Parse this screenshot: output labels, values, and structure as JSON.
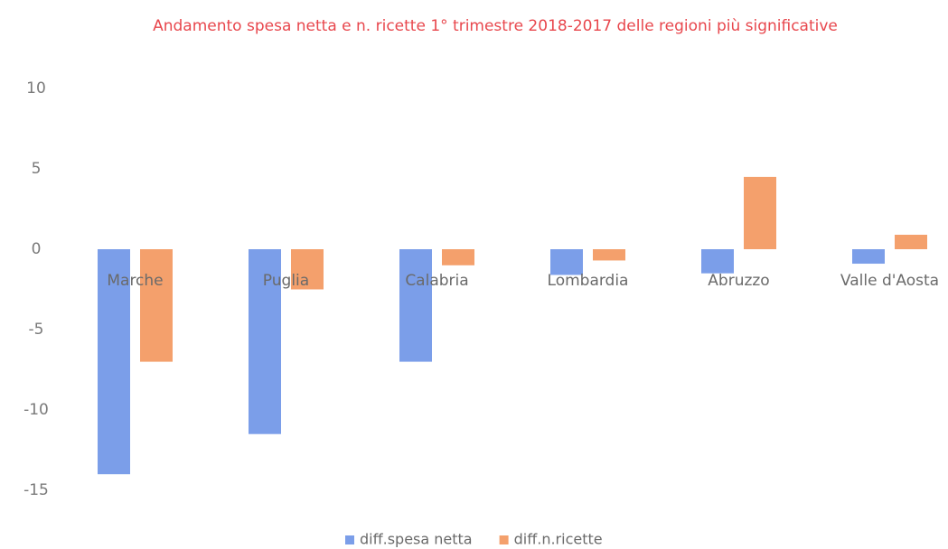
{
  "chart_data": {
    "type": "bar",
    "title": "Andamento spesa netta e n. ricette 1° trimestre 2018-2017 delle regioni più significative",
    "categories": [
      "Marche",
      "Puglia",
      "Calabria",
      "Lombardia",
      "Abruzzo",
      "Valle d'Aosta"
    ],
    "series": [
      {
        "name": "diff.spesa netta",
        "color": "#7b9ee9",
        "values": [
          -14,
          -11.5,
          -7,
          -1.6,
          -1.5,
          -0.9
        ]
      },
      {
        "name": "diff.n.ricette",
        "color": "#f4a06c",
        "values": [
          -7,
          -2.5,
          -1,
          -0.7,
          4.5,
          0.9
        ]
      }
    ],
    "ylim": [
      -15,
      10
    ],
    "yticks": [
      -15,
      -10,
      -5,
      0,
      5,
      10
    ],
    "grid": false,
    "legend": "bottom"
  }
}
